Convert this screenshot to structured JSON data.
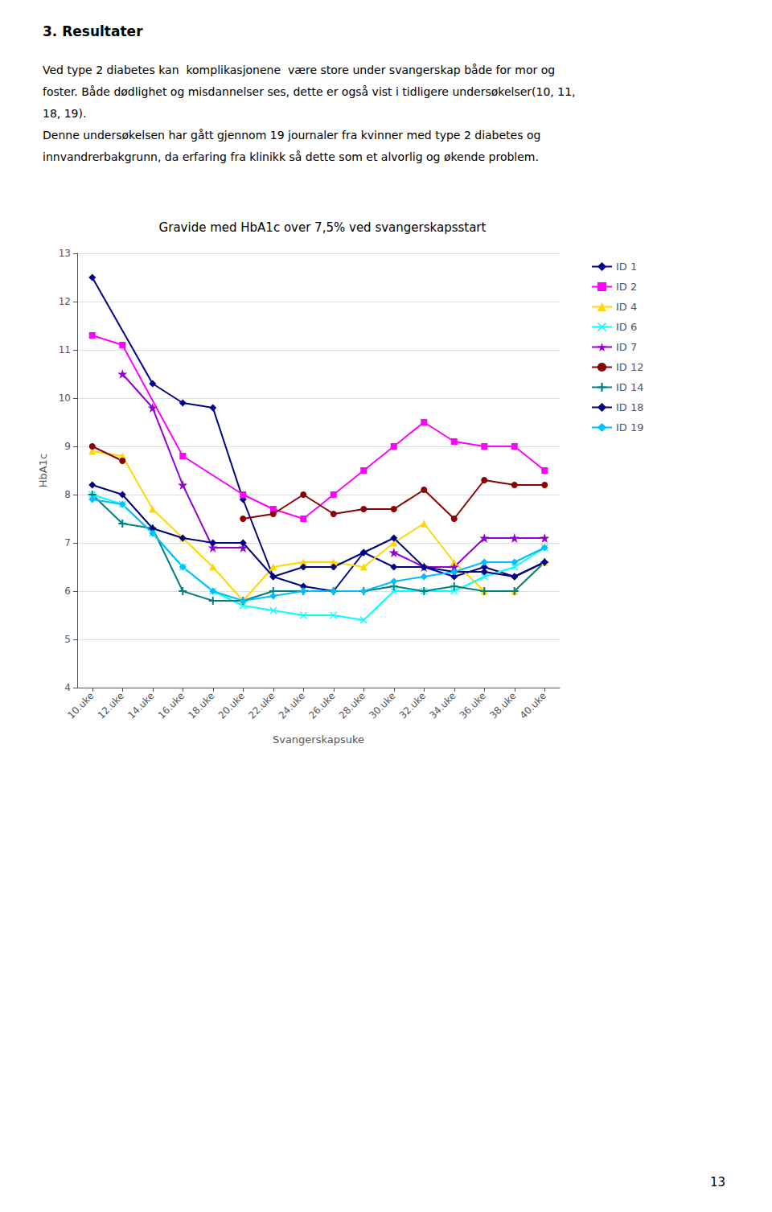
{
  "heading": "3. Resultater",
  "body_lines": [
    "Ved type 2 diabetes kan  komplikasjonene  være store under svangerskap både for mor og",
    "foster. Både dødlighet og misdannelser ses, dette er også vist i tidligere undersøkelser(10, 11,",
    "18, 19).",
    "Denne undersøkelsen har gått gjennom 19 journaler fra kvinner med type 2 diabetes og",
    "innvandrerbakgrunn, da erfaring fra klinikk så dette som et alvorlig og økende problem."
  ],
  "page_number": "13",
  "chart_data": {
    "type": "line",
    "title": "Gravide med HbA1c over 7,5% ved svangerskapsstart",
    "x_label": "Svangerskapsuke",
    "y_label": "HbA1c",
    "xlim": [
      9,
      41
    ],
    "xticks": [
      {
        "value": 10,
        "label": "10.uke"
      },
      {
        "value": 12,
        "label": "12.uke"
      },
      {
        "value": 14,
        "label": "14.uke"
      },
      {
        "value": 16,
        "label": "16.uke"
      },
      {
        "value": 18,
        "label": "18.uke"
      },
      {
        "value": 20,
        "label": "20.uke"
      },
      {
        "value": 22,
        "label": "22.uke"
      },
      {
        "value": 24,
        "label": "24.uke"
      },
      {
        "value": 26,
        "label": "26.uke"
      },
      {
        "value": 28,
        "label": "28.uke"
      },
      {
        "value": 30,
        "label": "30.uke"
      },
      {
        "value": 32,
        "label": "32.uke"
      },
      {
        "value": 34,
        "label": "34.uke"
      },
      {
        "value": 36,
        "label": "36.uke"
      },
      {
        "value": 38,
        "label": "38.uke"
      },
      {
        "value": 40,
        "label": "40.uke"
      }
    ],
    "ylim": [
      4,
      13
    ],
    "yticks": [
      4,
      5,
      6,
      7,
      8,
      9,
      10,
      11,
      12,
      13
    ],
    "grid": true,
    "legend": "right",
    "series": [
      {
        "name": "ID 1",
        "color": "#00008B",
        "marker": "diamond",
        "x": [
          10,
          14,
          16,
          18,
          20,
          22,
          24,
          26,
          28,
          30,
          32,
          34,
          36,
          38,
          40
        ],
        "values": [
          12.5,
          10.3,
          9.9,
          9.8,
          7.9,
          6.3,
          6.1,
          6.0,
          6.8,
          6.5,
          6.5,
          6.3,
          6.5,
          6.3,
          6.6
        ]
      },
      {
        "name": "ID 2",
        "color": "#FF00FF",
        "marker": "square",
        "x": [
          10,
          12,
          16,
          20,
          22,
          24,
          26,
          28,
          30,
          32,
          34,
          36,
          38,
          40
        ],
        "values": [
          11.3,
          11.1,
          8.8,
          8.0,
          7.7,
          7.5,
          8.0,
          8.5,
          9.0,
          9.5,
          9.1,
          9.0,
          9.0,
          8.5
        ]
      },
      {
        "name": "ID 4",
        "color": "#FFD700",
        "marker": "triangle",
        "x": [
          10,
          12,
          14,
          16,
          18,
          20,
          22,
          24,
          26,
          28,
          30,
          32,
          34,
          36,
          38,
          40
        ],
        "values": [
          8.9,
          8.8,
          7.7,
          7.1,
          6.5,
          5.8,
          6.5,
          6.6,
          6.6,
          6.5,
          7.0,
          7.4,
          6.6,
          6.0,
          6.0,
          6.6
        ]
      },
      {
        "name": "ID 6",
        "color": "#00FFFF",
        "marker": "x",
        "x": [
          10,
          12,
          14,
          16,
          18,
          20,
          22,
          24,
          26,
          28,
          30,
          32,
          34,
          36,
          38,
          40
        ],
        "values": [
          8.0,
          7.8,
          7.2,
          6.5,
          6.0,
          5.7,
          5.6,
          5.5,
          5.5,
          5.4,
          6.0,
          6.0,
          6.0,
          6.3,
          6.5,
          6.9
        ]
      },
      {
        "name": "ID 7",
        "color": "#9400D3",
        "marker": "star",
        "x": [
          12,
          14,
          16,
          18,
          20,
          22,
          24,
          26,
          28,
          30,
          32,
          34,
          36,
          38,
          40
        ],
        "values": [
          10.5,
          9.8,
          8.2,
          6.9,
          6.9,
          null,
          null,
          null,
          null,
          6.8,
          6.5,
          6.5,
          7.1,
          7.1,
          7.1
        ]
      },
      {
        "name": "ID 12",
        "color": "#8B0000",
        "marker": "circle",
        "x": [
          10,
          12,
          14,
          16,
          18,
          20,
          22,
          24,
          26,
          28,
          30,
          32,
          34,
          36,
          38,
          40
        ],
        "values": [
          9.0,
          8.7,
          null,
          null,
          null,
          7.5,
          7.6,
          8.0,
          7.6,
          7.7,
          7.7,
          8.1,
          7.5,
          8.3,
          8.2,
          8.2
        ]
      },
      {
        "name": "ID 14",
        "color": "#008080",
        "marker": "plus",
        "x": [
          10,
          12,
          14,
          16,
          18,
          20,
          22,
          24,
          26,
          28,
          30,
          32,
          34,
          36,
          38,
          40
        ],
        "values": [
          8.0,
          7.4,
          7.3,
          6.0,
          5.8,
          5.8,
          6.0,
          6.0,
          6.0,
          6.0,
          6.1,
          6.0,
          6.1,
          6.0,
          6.0,
          6.6
        ]
      },
      {
        "name": "ID 18",
        "color": "#000080",
        "marker": "diamond",
        "x": [
          10,
          12,
          14,
          16,
          18,
          20,
          22,
          24,
          26,
          28,
          30,
          32,
          34,
          36,
          38,
          40
        ],
        "values": [
          8.2,
          8.0,
          7.3,
          7.1,
          7.0,
          7.0,
          6.3,
          6.5,
          6.5,
          6.8,
          7.1,
          6.5,
          6.4,
          6.4,
          6.3,
          6.6
        ]
      },
      {
        "name": "ID 19",
        "color": "#00BFFF",
        "marker": "diamond",
        "x": [
          10,
          12,
          14,
          16,
          18,
          20,
          22,
          24,
          26,
          28,
          30,
          32,
          34,
          36,
          38,
          40
        ],
        "values": [
          7.9,
          7.8,
          7.2,
          6.5,
          6.0,
          5.8,
          5.9,
          6.0,
          6.0,
          6.0,
          6.2,
          6.3,
          6.4,
          6.6,
          6.6,
          6.9
        ]
      }
    ]
  }
}
